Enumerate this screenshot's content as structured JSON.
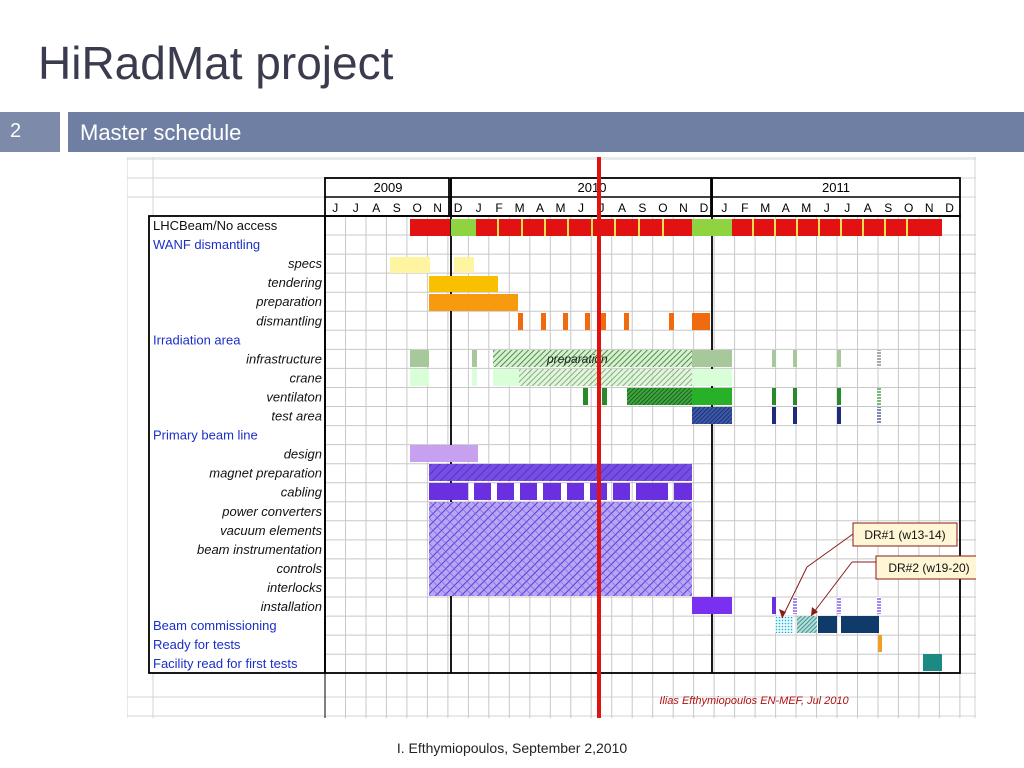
{
  "slide": {
    "title": "HiRadMat project",
    "number": "2",
    "section": "Master schedule",
    "footer": "I. Efthymiopoulos, September 2,2010"
  },
  "colors": {
    "section_bar": "#6f7ea3",
    "red": "#e21212",
    "green_light": "#a4d47a",
    "current_date_line": "#e21212",
    "callout_border": "#8b1a1a",
    "row_link_text": "#1a2fc8"
  },
  "schedule": {
    "years": [
      "2009",
      "2010",
      "2011"
    ],
    "months": [
      "J",
      "J",
      "A",
      "S",
      "O",
      "N",
      "D",
      "J",
      "F",
      "M",
      "A",
      "M",
      "J",
      "J",
      "A",
      "S",
      "O",
      "N",
      "D",
      "J",
      "F",
      "M",
      "A",
      "M",
      "J",
      "J",
      "A",
      "S",
      "O",
      "N",
      "D"
    ],
    "rows": [
      {
        "label": "LHCBeam/No access",
        "style": "header"
      },
      {
        "label": "WANF dismantling",
        "style": "section"
      },
      {
        "label": "specs",
        "style": "item"
      },
      {
        "label": "tendering",
        "style": "item"
      },
      {
        "label": "preparation",
        "style": "item"
      },
      {
        "label": "dismantling",
        "style": "item"
      },
      {
        "label": "Irradiation area",
        "style": "section"
      },
      {
        "label": "infrastructure",
        "style": "item"
      },
      {
        "label": "crane",
        "style": "item"
      },
      {
        "label": "ventilaton",
        "style": "item"
      },
      {
        "label": "test area",
        "style": "item"
      },
      {
        "label": "Primary beam line",
        "style": "section"
      },
      {
        "label": "design",
        "style": "item"
      },
      {
        "label": "magnet preparation",
        "style": "item"
      },
      {
        "label": "cabling",
        "style": "item"
      },
      {
        "label": "power converters",
        "style": "item"
      },
      {
        "label": "vacuum elements",
        "style": "item"
      },
      {
        "label": "beam instrumentation",
        "style": "item"
      },
      {
        "label": "controls",
        "style": "item"
      },
      {
        "label": "interlocks",
        "style": "item"
      },
      {
        "label": "installation",
        "style": "item"
      },
      {
        "label": "Beam commissioning",
        "style": "section"
      },
      {
        "label": "Ready for tests",
        "style": "section"
      },
      {
        "label": "Facility read for first tests",
        "style": "section"
      }
    ],
    "bar_note": "preparation",
    "callouts": [
      "DR#1 (w13-14)",
      "DR#2 (w19-20)"
    ],
    "credit": "Ilias Efthymiopoulos EN-MEF, Jul 2010"
  }
}
